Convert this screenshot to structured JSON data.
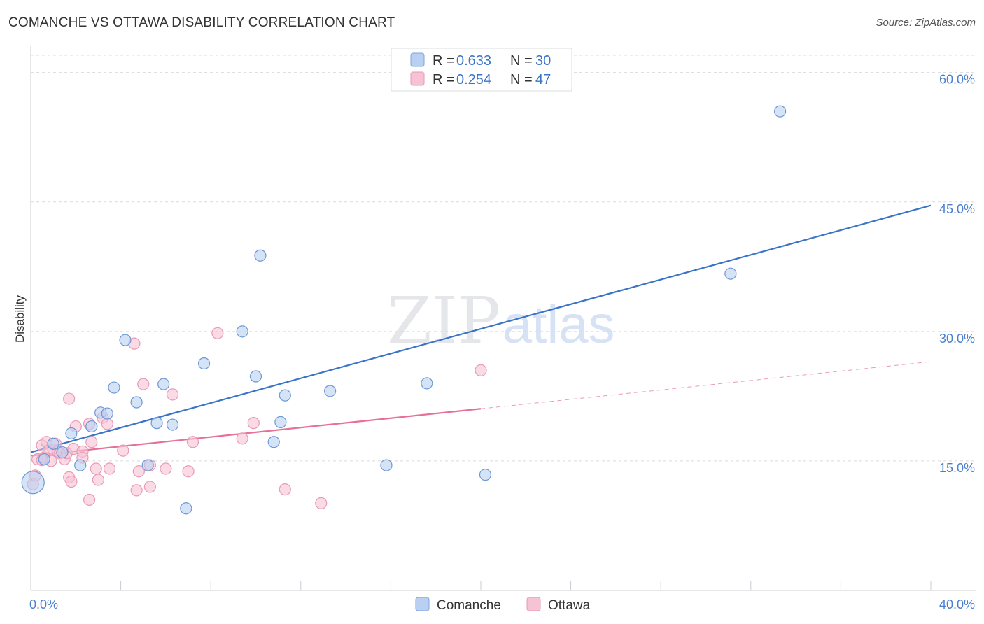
{
  "title": "COMANCHE VS OTTAWA DISABILITY CORRELATION CHART",
  "source": "Source: ZipAtlas.com",
  "watermark": {
    "zip": "ZIP",
    "atlas": "atlas"
  },
  "colors": {
    "comanche": "#3a74c9",
    "comanche_fill": "#b9d0f2",
    "ottawa": "#e86f98",
    "ottawa_fill": "#f6c3d4",
    "tick_label": "#4a7fd0",
    "grid": "#d8dbe0"
  },
  "legend": {
    "rows": [
      {
        "r_label": "R = ",
        "r_value": "0.633",
        "n_label": "N = ",
        "n_value": "30"
      },
      {
        "r_label": "R = ",
        "r_value": "0.254",
        "n_label": "N = ",
        "n_value": "47"
      }
    ]
  },
  "chart_data": {
    "type": "scatter",
    "title": "COMANCHE VS OTTAWA DISABILITY CORRELATION CHART",
    "xlabel": "",
    "ylabel": "Disability",
    "xlim": [
      0,
      40
    ],
    "ylim": [
      0,
      62
    ],
    "x_tick_labels": [
      "0.0%",
      "40.0%"
    ],
    "y_ticks": [
      15,
      30,
      45,
      60
    ],
    "y_tick_labels": [
      "15.0%",
      "30.0%",
      "45.0%",
      "60.0%"
    ],
    "grid": true,
    "legend_position": "top-center",
    "series": [
      {
        "name": "Comanche",
        "color": "#3a74c9",
        "r": 0.633,
        "n": 30,
        "trend": {
          "x0": 0,
          "y0": 16.0,
          "x1": 40,
          "y1": 44.6,
          "dashed_from": null
        },
        "points": [
          [
            0.1,
            12.5
          ],
          [
            0.6,
            15.2
          ],
          [
            1.0,
            17.0
          ],
          [
            1.4,
            16.0
          ],
          [
            1.8,
            18.2
          ],
          [
            2.2,
            14.5
          ],
          [
            2.7,
            19.0
          ],
          [
            3.1,
            20.6
          ],
          [
            3.4,
            20.5
          ],
          [
            3.7,
            23.5
          ],
          [
            4.2,
            29.0
          ],
          [
            4.7,
            21.8
          ],
          [
            5.2,
            14.5
          ],
          [
            5.6,
            19.4
          ],
          [
            5.9,
            23.9
          ],
          [
            6.3,
            19.2
          ],
          [
            6.9,
            9.5
          ],
          [
            7.7,
            26.3
          ],
          [
            9.4,
            30.0
          ],
          [
            10.0,
            24.8
          ],
          [
            10.2,
            38.8
          ],
          [
            10.8,
            17.2
          ],
          [
            11.1,
            19.5
          ],
          [
            11.3,
            22.6
          ],
          [
            13.3,
            23.1
          ],
          [
            15.8,
            14.5
          ],
          [
            17.6,
            24.0
          ],
          [
            20.2,
            13.4
          ],
          [
            31.1,
            36.7
          ],
          [
            33.3,
            55.5
          ]
        ]
      },
      {
        "name": "Ottawa",
        "color": "#e86f98",
        "r": 0.254,
        "n": 47,
        "trend": {
          "x0": 0,
          "y0": 15.6,
          "x1": 40,
          "y1": 26.5,
          "dashed_from": 20
        },
        "points": [
          [
            0.1,
            12.3
          ],
          [
            0.2,
            13.3
          ],
          [
            0.3,
            15.2
          ],
          [
            0.5,
            16.8
          ],
          [
            0.6,
            15.4
          ],
          [
            0.7,
            17.2
          ],
          [
            0.8,
            16.2
          ],
          [
            0.9,
            15.0
          ],
          [
            1.0,
            16.3
          ],
          [
            1.1,
            17.0
          ],
          [
            1.2,
            16.1
          ],
          [
            1.3,
            15.9
          ],
          [
            1.5,
            15.2
          ],
          [
            1.6,
            15.9
          ],
          [
            1.7,
            13.1
          ],
          [
            1.7,
            22.2
          ],
          [
            1.8,
            12.6
          ],
          [
            1.9,
            16.4
          ],
          [
            2.0,
            19.0
          ],
          [
            2.3,
            16.1
          ],
          [
            2.3,
            15.4
          ],
          [
            2.6,
            10.5
          ],
          [
            2.6,
            19.3
          ],
          [
            2.7,
            17.2
          ],
          [
            2.9,
            14.1
          ],
          [
            3.0,
            12.8
          ],
          [
            3.2,
            20.0
          ],
          [
            3.4,
            19.3
          ],
          [
            3.5,
            14.1
          ],
          [
            4.1,
            16.2
          ],
          [
            4.6,
            28.6
          ],
          [
            4.7,
            11.6
          ],
          [
            4.8,
            13.8
          ],
          [
            5.0,
            23.9
          ],
          [
            5.3,
            14.5
          ],
          [
            5.3,
            12.0
          ],
          [
            6.0,
            14.1
          ],
          [
            6.3,
            22.7
          ],
          [
            7.0,
            13.8
          ],
          [
            7.2,
            17.2
          ],
          [
            8.3,
            29.8
          ],
          [
            9.4,
            17.6
          ],
          [
            9.9,
            19.4
          ],
          [
            11.3,
            11.7
          ],
          [
            12.9,
            10.1
          ],
          [
            20.0,
            25.5
          ],
          [
            0.5,
            15.1
          ]
        ]
      }
    ],
    "bottom_legend": [
      "Comanche",
      "Ottawa"
    ]
  }
}
